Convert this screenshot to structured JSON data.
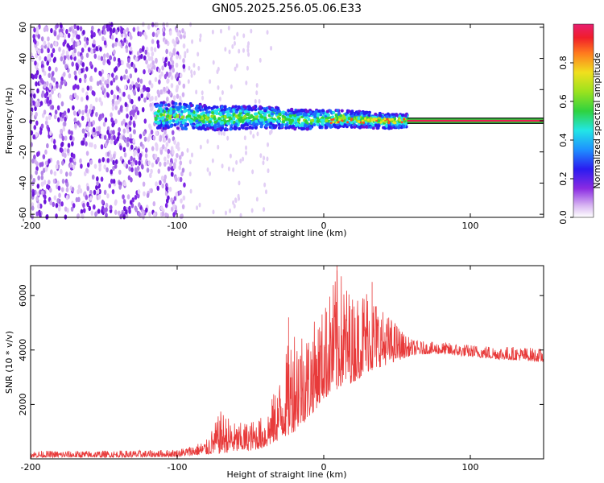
{
  "figure_title": "GN05.2025.256.05.06.E33",
  "chart_data": [
    {
      "type": "heatmap",
      "title": "GN05.2025.256.05.06.E33",
      "xlabel": "Height of straight line (km)",
      "ylabel": "Frequency (Hz)",
      "xlim": [
        -200,
        150
      ],
      "ylim": [
        -62,
        62
      ],
      "x_ticks": [
        -200,
        -100,
        0,
        100
      ],
      "y_ticks": [
        -60,
        -40,
        -20,
        0,
        20,
        40,
        60
      ],
      "regions": [
        {
          "name": "noise",
          "x_range": [
            -200,
            -95
          ],
          "freq_range": [
            -62,
            62
          ],
          "amplitude": 0.1
        },
        {
          "name": "band",
          "x_range": [
            -115,
            57
          ],
          "center_hz": 3,
          "halfwidth_hz": 8,
          "amplitude": 0.4
        },
        {
          "name": "line",
          "x_range": [
            57,
            150
          ],
          "center_hz": 0,
          "halfwidth_hz": 2,
          "amplitude": 0.95
        }
      ],
      "colorbar": {
        "label": "Normalized spectral amplitude",
        "range": [
          0,
          1
        ],
        "ticks": [
          0.0,
          0.2,
          0.4,
          0.6,
          0.8
        ]
      }
    },
    {
      "type": "line",
      "xlabel": "Height of straight line (km)",
      "ylabel": "SNR (10 * v/v)",
      "xlim": [
        -200,
        150
      ],
      "ylim": [
        0,
        7100
      ],
      "x_ticks": [
        -200,
        -100,
        0,
        100
      ],
      "y_ticks": [
        2000,
        4000,
        6000
      ],
      "series": [
        {
          "name": "SNR",
          "color": "#e83a3a",
          "x": [
            -200,
            -160,
            -120,
            -100,
            -90,
            -80,
            -70,
            -60,
            -50,
            -40,
            -30,
            -20,
            -10,
            0,
            10,
            20,
            30,
            40,
            50,
            55,
            60,
            70,
            80,
            100,
            120,
            140,
            150
          ],
          "low": [
            50,
            50,
            60,
            80,
            120,
            150,
            200,
            250,
            300,
            400,
            700,
            1000,
            1500,
            2200,
            2600,
            2800,
            3200,
            3400,
            3600,
            3700,
            3800,
            3850,
            3850,
            3750,
            3650,
            3600,
            3550
          ],
          "high": [
            300,
            300,
            320,
            350,
            500,
            700,
            1800,
            1300,
            1400,
            1600,
            3000,
            5200,
            4800,
            5600,
            7100,
            6000,
            6500,
            5500,
            5000,
            4600,
            4400,
            4300,
            4300,
            4200,
            4150,
            4100,
            4050
          ],
          "spikes": [
            {
              "x": 9,
              "y": 7100
            },
            {
              "x": 33,
              "y": 6500
            },
            {
              "x": -24,
              "y": 5200
            },
            {
              "x": 2,
              "y": 5400
            }
          ]
        }
      ]
    }
  ],
  "colors": {
    "snr_line": "#e83a3a",
    "band_green": "#2fd23f",
    "band_cyan": "#22e6e6",
    "band_blue": "#2a1cf0",
    "band_purple": "#7b26e4",
    "line_red": "#e81e50"
  }
}
